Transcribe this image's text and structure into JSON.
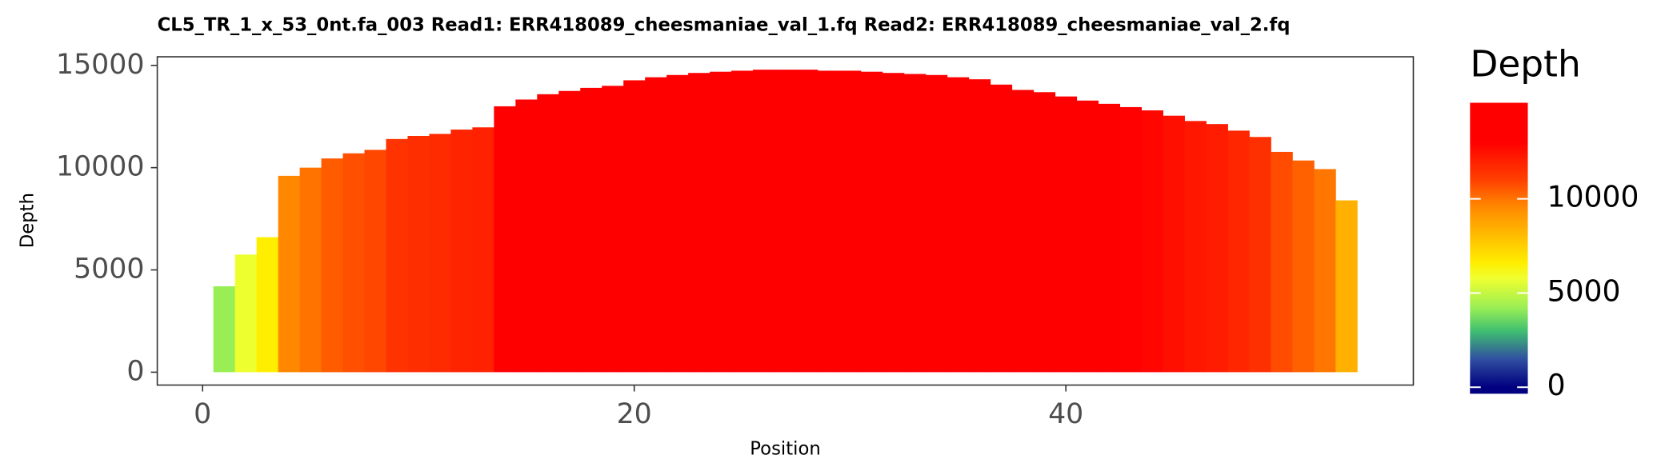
{
  "chart_data": {
    "type": "bar",
    "title": "CL5_TR_1_x_53_0nt.fa_003   Read1: ERR418089_cheesmaniae_val_1.fq   Read2: ERR418089_cheesmaniae_val_2.fq",
    "x_label": "Position",
    "y_label": "Depth",
    "legend_title": "Depth",
    "x": [
      1,
      2,
      3,
      4,
      5,
      6,
      7,
      8,
      9,
      10,
      11,
      12,
      13,
      14,
      15,
      16,
      17,
      18,
      19,
      20,
      21,
      22,
      23,
      24,
      25,
      26,
      27,
      28,
      29,
      30,
      31,
      32,
      33,
      34,
      35,
      36,
      37,
      38,
      39,
      40,
      41,
      42,
      43,
      44,
      45,
      46,
      47,
      48,
      49,
      50,
      51,
      52,
      53
    ],
    "values": [
      4200,
      5750,
      6600,
      9600,
      10000,
      10450,
      10700,
      10870,
      11400,
      11550,
      11650,
      11860,
      11970,
      13000,
      13330,
      13590,
      13750,
      13900,
      14000,
      14270,
      14420,
      14530,
      14630,
      14690,
      14740,
      14790,
      14790,
      14790,
      14740,
      14740,
      14690,
      14630,
      14580,
      14530,
      14420,
      14320,
      14060,
      13800,
      13690,
      13480,
      13280,
      13120,
      12960,
      12800,
      12540,
      12280,
      12130,
      11810,
      11500,
      10770,
      10350,
      9930,
      8400
    ],
    "xlim": [
      -2.1,
      56.1
    ],
    "xticks": [
      0,
      20,
      40
    ],
    "ylim": [
      -630,
      15420
    ],
    "yticks": [
      0,
      5000,
      10000,
      15000
    ],
    "color_stops": [
      {
        "value": 0,
        "color": "#000080"
      },
      {
        "value": 1500,
        "color": "#3050a0"
      },
      {
        "value": 3000,
        "color": "#40c070"
      },
      {
        "value": 4200,
        "color": "#99ee55"
      },
      {
        "value": 5750,
        "color": "#eeff30"
      },
      {
        "value": 6600,
        "color": "#ffee00"
      },
      {
        "value": 8400,
        "color": "#ffb000"
      },
      {
        "value": 9600,
        "color": "#ff8800"
      },
      {
        "value": 11000,
        "color": "#ff4000"
      },
      {
        "value": 13000,
        "color": "#ff0000"
      },
      {
        "value": 15100,
        "color": "#ff0000"
      }
    ],
    "colorbar_lim": [
      -340,
      15100
    ],
    "colorbar_ticks": [
      0,
      5000,
      10000
    ]
  }
}
